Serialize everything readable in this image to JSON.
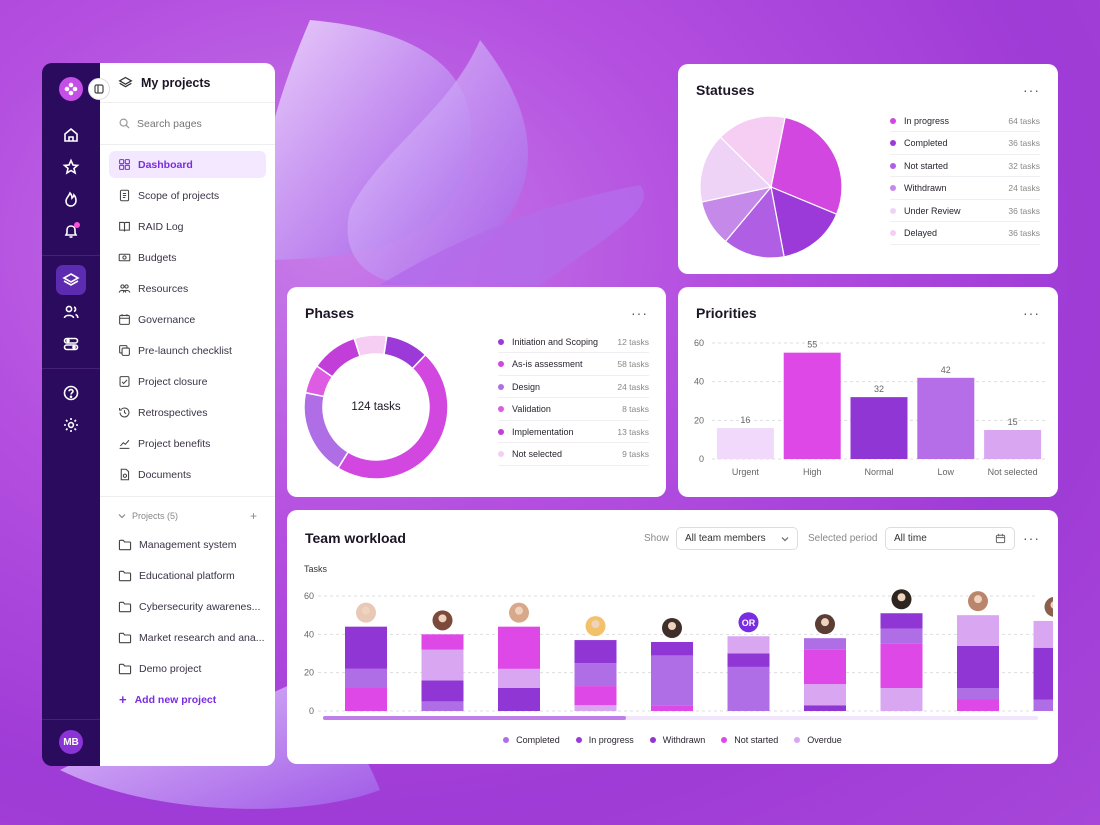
{
  "sidebar": {
    "title": "My projects",
    "search_placeholder": "Search pages",
    "items": [
      {
        "label": "Dashboard",
        "icon": "dashboard-icon",
        "active": true
      },
      {
        "label": "Scope of projects",
        "icon": "document-icon"
      },
      {
        "label": "RAID Log",
        "icon": "book-icon"
      },
      {
        "label": "Budgets",
        "icon": "money-icon"
      },
      {
        "label": "Resources",
        "icon": "people-icon"
      },
      {
        "label": "Governance",
        "icon": "calendar-icon"
      },
      {
        "label": "Pre-launch checklist",
        "icon": "copy-icon"
      },
      {
        "label": "Project closure",
        "icon": "check-icon"
      },
      {
        "label": "Retrospectives",
        "icon": "history-icon"
      },
      {
        "label": "Project benefits",
        "icon": "chart-icon"
      },
      {
        "label": "Documents",
        "icon": "file-icon"
      }
    ],
    "projects_label": "Projects (5)",
    "projects": [
      "Management system",
      "Educational platform",
      "Cybersecurity awarenes...",
      "Market research and ana...",
      "Demo project"
    ],
    "add_project": "Add new project",
    "user_initials": "MB"
  },
  "statuses": {
    "title": "Statuses",
    "menu": "···",
    "items": [
      {
        "name": "In progress",
        "value": "64 tasks",
        "color": "#d147e0"
      },
      {
        "name": "Completed",
        "value": "36 tasks",
        "color": "#9b3ad8"
      },
      {
        "name": "Not started",
        "value": "32 tasks",
        "color": "#b05ee4"
      },
      {
        "name": "Withdrawn",
        "value": "24 tasks",
        "color": "#c58ae9"
      },
      {
        "name": "Under Review",
        "value": "36 tasks",
        "color": "#efd3f7"
      },
      {
        "name": "Delayed",
        "value": "36 tasks",
        "color": "#f6cdf3"
      }
    ]
  },
  "phases": {
    "title": "Phases",
    "menu": "···",
    "center_label": "124 tasks",
    "items": [
      {
        "name": "Initiation and Scoping",
        "value": "12 tasks",
        "color": "#9b3ad8"
      },
      {
        "name": "As-is assessment",
        "value": "58 tasks",
        "color": "#d147e0"
      },
      {
        "name": "Design",
        "value": "24 tasks",
        "color": "#b06ee6"
      },
      {
        "name": "Validation",
        "value": "8 tasks",
        "color": "#de5ce4"
      },
      {
        "name": "Implementation",
        "value": "13 tasks",
        "color": "#c13fd8"
      },
      {
        "name": "Not selected",
        "value": "9 tasks",
        "color": "#f6cdf3"
      }
    ]
  },
  "priorities": {
    "title": "Priorities",
    "menu": "···",
    "chart_data": {
      "type": "bar",
      "categories": [
        "Urgent",
        "High",
        "Normal",
        "Low",
        "Not selected"
      ],
      "values": [
        16,
        55,
        32,
        42,
        15
      ],
      "ylim": [
        0,
        60
      ],
      "yticks": [
        "0",
        "20",
        "40",
        "60"
      ],
      "colors": [
        "#f1d9fb",
        "#dd48e6",
        "#8f36d4",
        "#b56ee8",
        "#d9a7f1"
      ]
    }
  },
  "workload": {
    "title": "Team workload",
    "show_label": "Show",
    "members_select": "All team members",
    "period_label": "Selected period",
    "period_select": "All time",
    "menu": "···",
    "y_title": "Tasks",
    "yticks": [
      "0",
      "20",
      "40",
      "60"
    ],
    "chart_data": {
      "type": "bar",
      "stacked": true,
      "ylim": [
        0,
        60
      ],
      "series": [
        {
          "name": "Completed",
          "color": "#b06ee6"
        },
        {
          "name": "In progress",
          "color": "#9b3ad8"
        },
        {
          "name": "Withdrawn",
          "color": "#8f36d4"
        },
        {
          "name": "Not started",
          "color": "#dd48e6"
        },
        {
          "name": "Overdue",
          "color": "#d9a7f1"
        }
      ],
      "members": [
        {
          "avatar": "",
          "stack": [
            12,
            10,
            22
          ]
        },
        {
          "avatar": "",
          "stack": [
            5,
            11,
            16,
            8
          ]
        },
        {
          "avatar": "",
          "stack": [
            12,
            10,
            22
          ]
        },
        {
          "avatar": "",
          "stack": [
            3,
            10,
            12,
            12
          ]
        },
        {
          "avatar": "",
          "stack": [
            3,
            26,
            7
          ]
        },
        {
          "avatar": "OR",
          "stack": [
            23,
            7,
            9
          ]
        },
        {
          "avatar": "",
          "stack": [
            3,
            11,
            18,
            6
          ]
        },
        {
          "avatar": "",
          "stack": [
            12,
            23,
            8,
            8
          ]
        },
        {
          "avatar": "",
          "stack": [
            6,
            6,
            22,
            16
          ]
        },
        {
          "avatar": "",
          "stack": [
            6,
            27,
            14
          ]
        }
      ]
    }
  }
}
